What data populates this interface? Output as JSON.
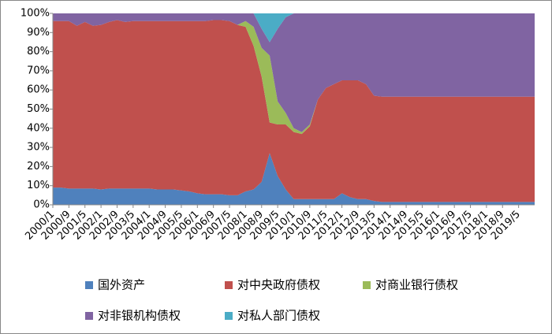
{
  "chart_data": {
    "type": "stacked_area_100",
    "categories": [
      "2000/1",
      null,
      "2000/9",
      null,
      "2001/5",
      null,
      "2002/1",
      null,
      "2002/9",
      null,
      "2003/5",
      null,
      "2004/1",
      null,
      "2004/9",
      null,
      "2005/5",
      null,
      "2006/1",
      null,
      "2006/9",
      null,
      "2007/5",
      null,
      "2008/1",
      null,
      "2008/9",
      null,
      "2009/5",
      null,
      "2010/1",
      null,
      "2010/9",
      null,
      "2011/5",
      null,
      "2012/1",
      null,
      "2012/9",
      null,
      "2013/5",
      null,
      "2014/1",
      null,
      "2014/9",
      null,
      "2015/5",
      null,
      "2016/1",
      null,
      "2016/9",
      null,
      "2017/5",
      null,
      "2018/1",
      null,
      "2018/9",
      null,
      "2019/5",
      null,
      null
    ],
    "series": [
      {
        "name": "国外资产",
        "color": "#4f81bd",
        "values": [
          9,
          9,
          8.5,
          8.5,
          8.5,
          8.5,
          8,
          8.5,
          8.5,
          8.5,
          8.5,
          8.5,
          8.5,
          8,
          8,
          8,
          7.5,
          7,
          6,
          5.5,
          5.5,
          5.5,
          5,
          5,
          7,
          8,
          12,
          27,
          15,
          8,
          3,
          3,
          3,
          3,
          3,
          3,
          6,
          4,
          3,
          3,
          2,
          1.5,
          1.5,
          1.5,
          1.5,
          1.5,
          1.5,
          1.5,
          1.5,
          1.5,
          1.5,
          1.5,
          1.5,
          1.5,
          1.5,
          1.5,
          1.5,
          1.5,
          1.5,
          1.5,
          1.5
        ]
      },
      {
        "name": "对中央政府债权",
        "color": "#c0504d",
        "values": [
          87,
          87,
          87.5,
          85,
          87,
          85,
          86,
          87,
          88,
          87,
          87.5,
          87.5,
          87.5,
          88,
          88,
          88,
          88.5,
          89,
          90,
          90.5,
          91,
          91,
          91,
          89,
          86,
          75,
          55,
          16,
          27,
          34,
          35,
          34,
          38,
          52,
          58,
          60,
          59,
          61,
          62,
          60,
          55,
          55,
          55,
          55,
          55,
          55,
          55,
          55,
          55,
          55,
          55,
          55,
          55,
          55,
          55,
          55,
          55,
          55,
          55,
          55,
          55
        ]
      },
      {
        "name": "对商业银行债权",
        "color": "#9bbb59",
        "values": [
          0,
          0,
          0,
          0,
          0,
          0,
          0,
          0,
          0,
          0,
          0,
          0,
          0,
          0,
          0,
          0,
          0,
          0,
          0,
          0,
          0,
          0,
          0,
          0,
          3,
          10,
          15,
          35,
          12,
          6,
          2,
          1,
          1,
          0,
          0,
          0,
          0,
          0,
          0,
          0,
          0,
          0,
          0,
          0,
          0,
          0,
          0,
          0,
          0,
          0,
          0,
          0,
          0,
          0,
          0,
          0,
          0,
          0,
          0,
          0,
          0
        ]
      },
      {
        "name": "对非银机构债权",
        "color": "#8064a2",
        "values": [
          4,
          4,
          4,
          6.5,
          4.5,
          6.5,
          6,
          4.5,
          3.5,
          4.5,
          4,
          4,
          4,
          4,
          4,
          4,
          4,
          4,
          4,
          4,
          3.5,
          3.5,
          4,
          6,
          4,
          7,
          10,
          7,
          38,
          50,
          60,
          62,
          58,
          45,
          39,
          37,
          35,
          35,
          35,
          37,
          43,
          43.5,
          43.5,
          43.5,
          43.5,
          43.5,
          43.5,
          43.5,
          43.5,
          43.5,
          43.5,
          43.5,
          43.5,
          43.5,
          43.5,
          43.5,
          43.5,
          43.5,
          43.5,
          43.5,
          43.5
        ]
      },
      {
        "name": "对私人部门债权",
        "color": "#4bacc6",
        "values": [
          0,
          0,
          0,
          0,
          0,
          0,
          0,
          0,
          0,
          0,
          0,
          0,
          0,
          0,
          0,
          0,
          0,
          0,
          0,
          0,
          0,
          0,
          0,
          0,
          0,
          0,
          8,
          15,
          8,
          2,
          0,
          0,
          0,
          0,
          0,
          0,
          0,
          0,
          0,
          0,
          0,
          0,
          0,
          0,
          0,
          0,
          0,
          0,
          0,
          0,
          0,
          0,
          0,
          0,
          0,
          0,
          0,
          0,
          0,
          0,
          0
        ]
      }
    ],
    "ylim": [
      0,
      100
    ],
    "yticks": [
      {
        "value": 0,
        "label": "0%"
      },
      {
        "value": 10,
        "label": "10%"
      },
      {
        "value": 20,
        "label": "20%"
      },
      {
        "value": 30,
        "label": "30%"
      },
      {
        "value": 40,
        "label": "40%"
      },
      {
        "value": 50,
        "label": "50%"
      },
      {
        "value": 60,
        "label": "60%"
      },
      {
        "value": 70,
        "label": "70%"
      },
      {
        "value": 80,
        "label": "80%"
      },
      {
        "value": 90,
        "label": "90%"
      },
      {
        "value": 100,
        "label": "100%"
      }
    ],
    "legend": "bottom"
  }
}
